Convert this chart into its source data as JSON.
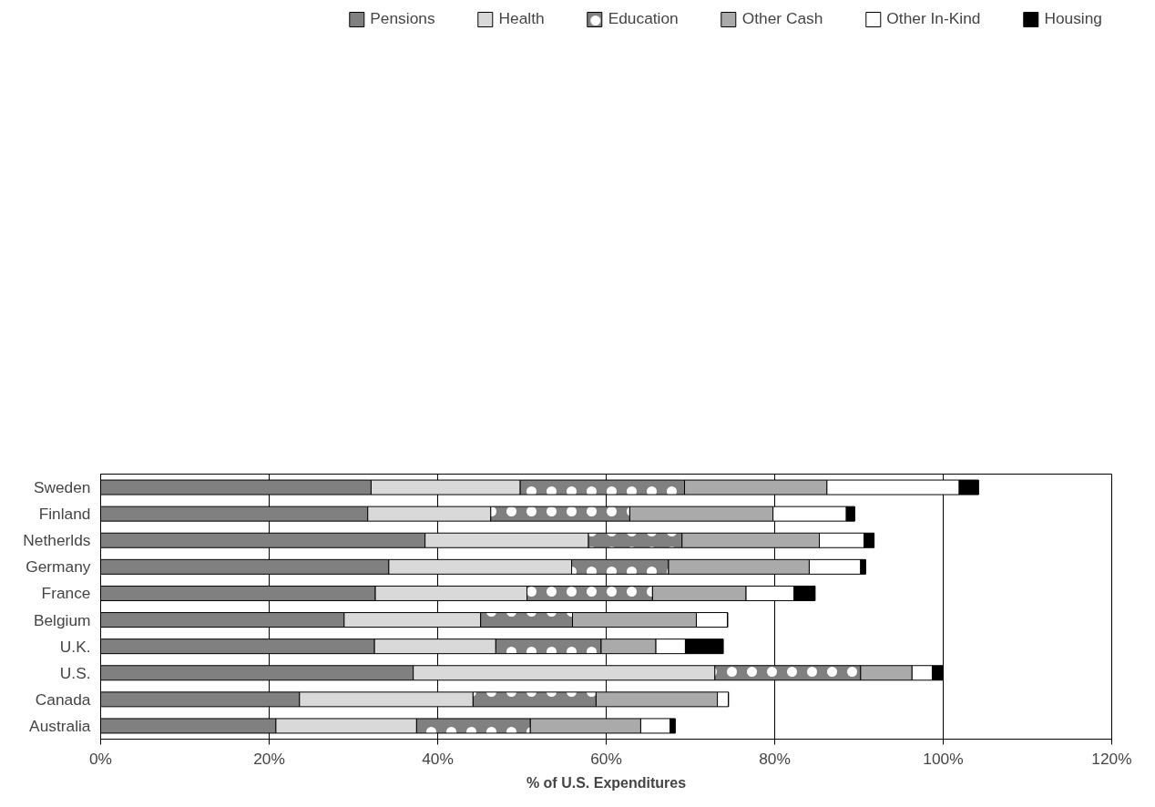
{
  "chart_data": {
    "type": "bar",
    "orientation": "horizontal",
    "stacked": true,
    "categories": [
      "Sweden",
      "Finland",
      "Netherlds",
      "Germany",
      "France",
      "Belgium",
      "U.K.",
      "U.S.",
      "Canada",
      "Australia"
    ],
    "series": [
      {
        "name": "Pensions",
        "color": "#808080",
        "values": [
          32.1,
          31.7,
          38.5,
          34.2,
          32.6,
          28.9,
          32.5,
          37.1,
          23.6,
          20.8
        ]
      },
      {
        "name": "Health",
        "color": "#d9d9d9",
        "values": [
          17.7,
          14.6,
          19.4,
          21.7,
          18.0,
          16.2,
          14.4,
          35.8,
          20.6,
          16.7
        ]
      },
      {
        "name": "Education",
        "color": "#808080",
        "values": [
          19.5,
          16.5,
          11.1,
          11.5,
          14.9,
          10.9,
          12.5,
          17.3,
          14.6,
          13.5
        ]
      },
      {
        "name": "Other Cash",
        "color": "#aaaaaa",
        "values": [
          16.9,
          17.0,
          16.3,
          16.7,
          11.1,
          14.7,
          6.5,
          6.1,
          14.4,
          13.1
        ]
      },
      {
        "name": "Other In-Kind",
        "color": "#ffffff",
        "values": [
          15.7,
          8.7,
          5.3,
          6.1,
          5.7,
          3.7,
          3.5,
          2.4,
          1.3,
          3.5
        ]
      },
      {
        "name": "Housing",
        "color": "#000000",
        "values": [
          2.3,
          1.0,
          1.2,
          0.6,
          2.5,
          0,
          4.5,
          1.3,
          0,
          0.6
        ]
      }
    ],
    "xlabel": "% of U.S. Expenditures",
    "xlim": [
      0,
      120
    ],
    "xticks": [
      {
        "value": 0,
        "label": "0%"
      },
      {
        "value": 20,
        "label": "20%"
      },
      {
        "value": 40,
        "label": "40%"
      },
      {
        "value": 60,
        "label": "60%"
      },
      {
        "value": 80,
        "label": "80%"
      },
      {
        "value": 100,
        "label": "100%"
      },
      {
        "value": 120,
        "label": "120%"
      }
    ],
    "grid": "x",
    "legend": "top"
  }
}
